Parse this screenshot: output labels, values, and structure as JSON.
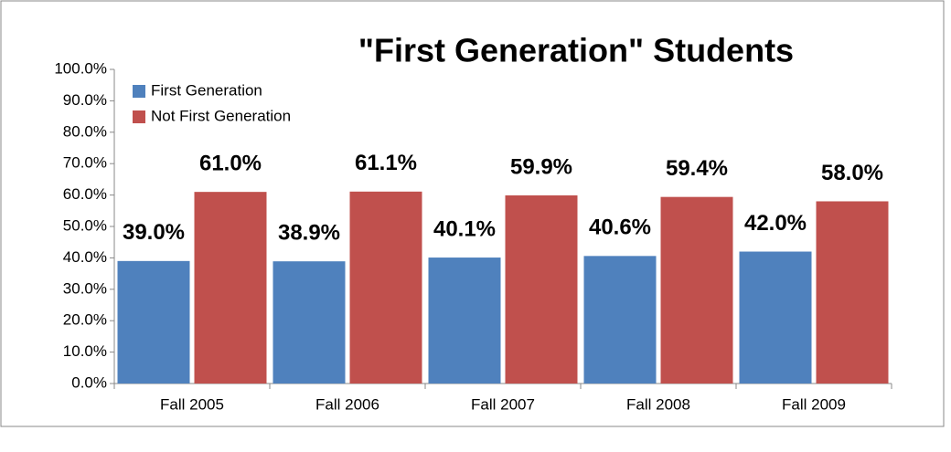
{
  "chart_data": {
    "type": "bar",
    "title": "\"First Generation\" Students",
    "categories": [
      "Fall 2005",
      "Fall 2006",
      "Fall 2007",
      "Fall 2008",
      "Fall 2009"
    ],
    "series": [
      {
        "name": "First Generation",
        "color": "#4f81bd",
        "values": [
          39.0,
          38.9,
          40.1,
          40.6,
          42.0
        ],
        "value_labels": [
          "39.0%",
          "38.9%",
          "40.1%",
          "40.6%",
          "42.0%"
        ]
      },
      {
        "name": "Not First Generation",
        "color": "#c0504d",
        "values": [
          61.0,
          61.1,
          59.9,
          59.4,
          58.0
        ],
        "value_labels": [
          "61.0%",
          "61.1%",
          "59.9%",
          "59.4%",
          "58.0%"
        ]
      }
    ],
    "ylim": [
      0,
      100
    ],
    "yticks": [
      {
        "value": 0,
        "label": "0.0%"
      },
      {
        "value": 10,
        "label": "10.0%"
      },
      {
        "value": 20,
        "label": "20.0%"
      },
      {
        "value": 30,
        "label": "30.0%"
      },
      {
        "value": 40,
        "label": "40.0%"
      },
      {
        "value": 50,
        "label": "50.0%"
      },
      {
        "value": 60,
        "label": "60.0%"
      },
      {
        "value": 70,
        "label": "70.0%"
      },
      {
        "value": 80,
        "label": "80.0%"
      },
      {
        "value": 90,
        "label": "90.0%"
      },
      {
        "value": 100,
        "label": "100.0%"
      }
    ],
    "legend": "top-left",
    "grid": false
  }
}
